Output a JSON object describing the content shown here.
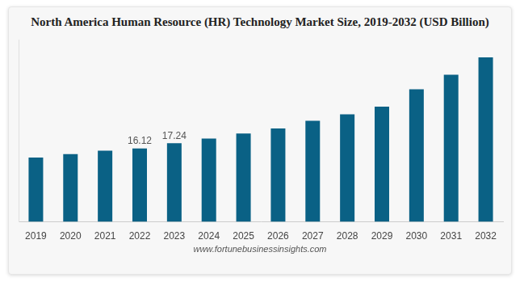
{
  "chart_data": {
    "type": "bar",
    "title": "North America Human Resource (HR) Technology Market Size, 2019-2032 (USD Billion)",
    "source": "www.fortunebusinessinsights.com",
    "categories": [
      "2019",
      "2020",
      "2021",
      "2022",
      "2023",
      "2024",
      "2025",
      "2026",
      "2027",
      "2028",
      "2029",
      "2030",
      "2031",
      "2032"
    ],
    "values": [
      14.1,
      14.85,
      15.6,
      16.12,
      17.24,
      18.3,
      19.4,
      20.5,
      22.2,
      23.6,
      25.3,
      29.1,
      32.3,
      36.1
    ],
    "value_labels": [
      null,
      null,
      null,
      "16.12",
      "17.24",
      null,
      null,
      null,
      null,
      null,
      null,
      null,
      null,
      null
    ],
    "data_labels": true,
    "color": "#0a6185",
    "ylim": [
      0,
      40
    ],
    "tick_labels": "x",
    "grid": false
  }
}
